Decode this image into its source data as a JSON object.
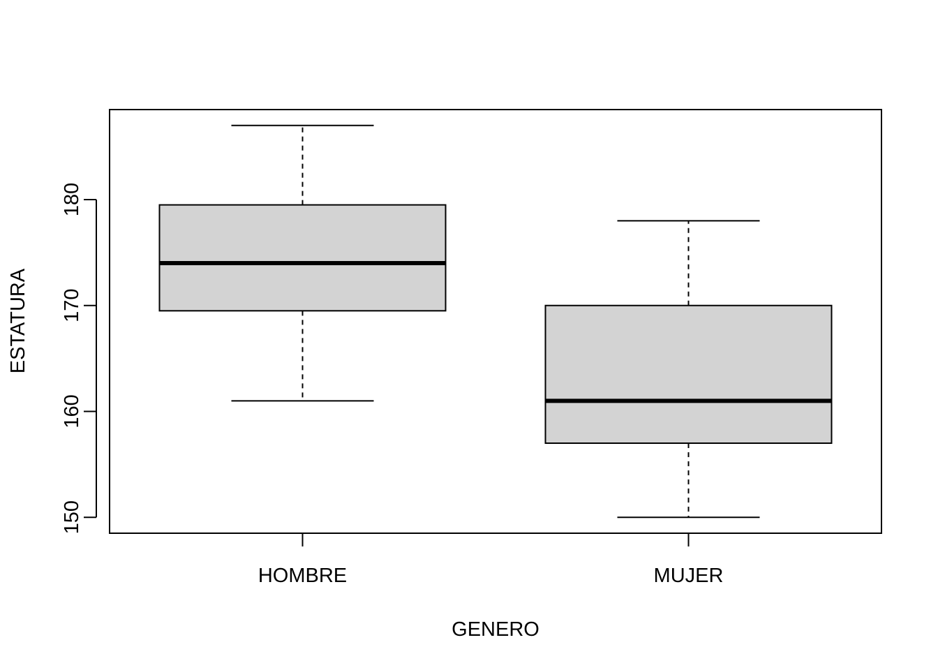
{
  "chart_data": {
    "type": "boxplot",
    "title": "",
    "xlabel": "GENERO",
    "ylabel": "ESTATURA",
    "ylim": [
      148.5,
      188.5
    ],
    "yticks": [
      150,
      160,
      170,
      180
    ],
    "ytick_labels": [
      "150",
      "160",
      "170",
      "180"
    ],
    "grid": false,
    "box_fill": "#d3d3d3",
    "line_color": "#000000",
    "categories": [
      "HOMBRE",
      "MUJER"
    ],
    "boxes": [
      {
        "category": "HOMBRE",
        "whisker_low": 161,
        "q1": 169.5,
        "median": 174,
        "q3": 179.5,
        "whisker_high": 187
      },
      {
        "category": "MUJER",
        "whisker_low": 150,
        "q1": 157,
        "median": 161,
        "q3": 170,
        "whisker_high": 178
      }
    ]
  }
}
